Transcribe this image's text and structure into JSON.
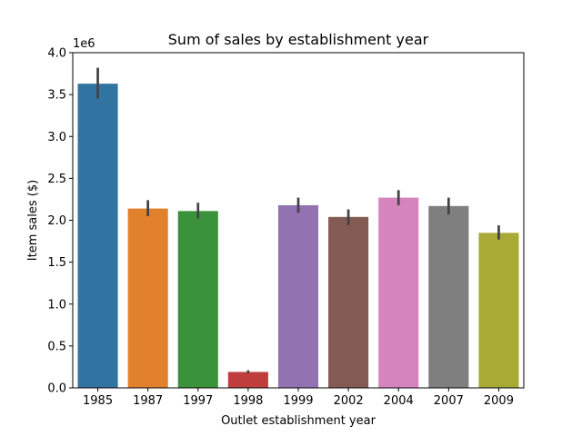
{
  "chart_data": {
    "type": "bar",
    "title": "Sum of sales by establishment year",
    "xlabel": "Outlet establishment year",
    "ylabel": "Item sales ($)",
    "y_offset_label": "1e6",
    "ylim": [
      0,
      4.0
    ],
    "y_ticks": [
      "0.0",
      "0.5",
      "1.0",
      "1.5",
      "2.0",
      "2.5",
      "3.0",
      "3.5",
      "4.0"
    ],
    "grid": false,
    "categories": [
      "1985",
      "1987",
      "1997",
      "1998",
      "1999",
      "2002",
      "2004",
      "2007",
      "2009"
    ],
    "values": [
      3.63,
      2.14,
      2.11,
      0.19,
      2.18,
      2.04,
      2.27,
      2.17,
      1.85
    ],
    "error_low": [
      3.45,
      2.05,
      2.02,
      0.17,
      2.09,
      1.94,
      2.18,
      2.07,
      1.77
    ],
    "error_high": [
      3.82,
      2.24,
      2.21,
      0.21,
      2.27,
      2.13,
      2.36,
      2.27,
      1.94
    ],
    "colors": [
      "#3274a1",
      "#e1812c",
      "#3a923a",
      "#c03d3e",
      "#9372b2",
      "#845b53",
      "#d684bd",
      "#7f7f7f",
      "#a9aa35"
    ],
    "error_color": "#424242"
  }
}
